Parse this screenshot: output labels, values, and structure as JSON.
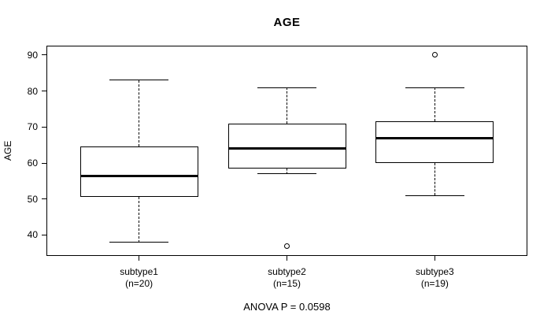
{
  "title": "AGE",
  "footer": "ANOVA P = 0.0598",
  "y_axis_label": "AGE",
  "chart_data": {
    "type": "boxplot",
    "title": "AGE",
    "xlabel": "",
    "ylabel": "AGE",
    "ylim": [
      34.4,
      92.4
    ],
    "yticks": [
      40,
      50,
      60,
      70,
      80,
      90
    ],
    "grid": "off",
    "categories": [
      "subtype1",
      "subtype2",
      "subtype3"
    ],
    "category_sublabels": [
      "(n=20)",
      "(n=15)",
      "(n=19)"
    ],
    "sample_sizes": [
      20,
      15,
      19
    ],
    "annotation": "ANOVA P = 0.0598",
    "line_color": "#000000",
    "box_fill": "#ffffff",
    "background": "#ffffff",
    "series": [
      {
        "name": "subtype1",
        "n": 20,
        "whisker_low": 38,
        "q1": 50.5,
        "median": 56.5,
        "q3": 64.5,
        "whisker_high": 83,
        "outliers": []
      },
      {
        "name": "subtype2",
        "n": 15,
        "whisker_low": 57,
        "q1": 58.5,
        "median": 64,
        "q3": 71,
        "whisker_high": 81,
        "outliers": [
          37
        ]
      },
      {
        "name": "subtype3",
        "n": 19,
        "whisker_low": 51,
        "q1": 60,
        "median": 67,
        "q3": 71.5,
        "whisker_high": 81,
        "outliers": [
          90
        ]
      }
    ]
  }
}
